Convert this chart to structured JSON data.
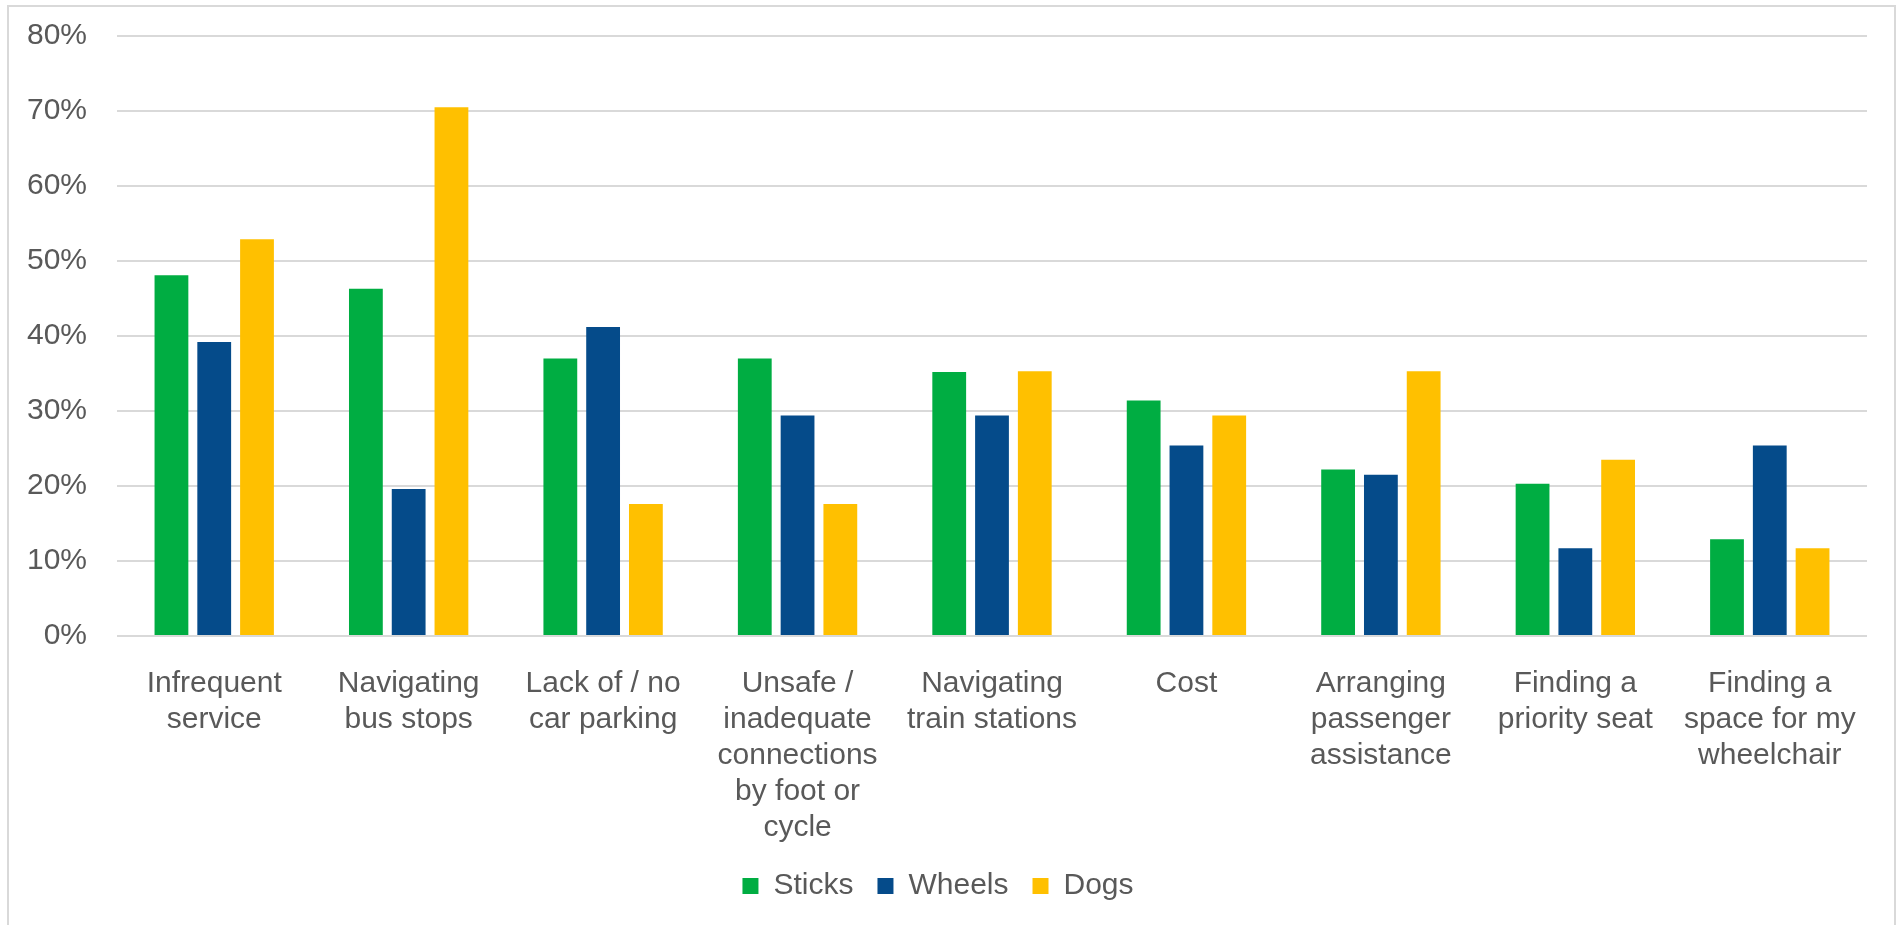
{
  "chart_data": {
    "type": "bar",
    "categories": [
      "Infrequent service",
      "Navigating bus stops",
      "Lack of / no car parking",
      "Unsafe / inadequate connections by foot or cycle",
      "Navigating train stations",
      "Cost",
      "Arranging passenger assistance",
      "Finding a priority seat",
      "Finding a space for my wheelchair"
    ],
    "series": [
      {
        "name": "Sticks",
        "color": "#00ad42",
        "values": [
          48.1,
          46.3,
          37.0,
          37.0,
          35.2,
          31.4,
          22.2,
          20.3,
          12.9
        ]
      },
      {
        "name": "Wheels",
        "color": "#054b8a",
        "values": [
          39.2,
          19.6,
          41.2,
          29.4,
          29.4,
          25.4,
          21.5,
          11.7,
          25.4
        ]
      },
      {
        "name": "Dogs",
        "color": "#ffc000",
        "values": [
          52.9,
          70.5,
          17.6,
          17.6,
          35.3,
          29.4,
          35.3,
          23.5,
          11.7
        ]
      }
    ],
    "ylim": [
      0,
      80
    ],
    "yticks": [
      {
        "value": 0,
        "label": "0%"
      },
      {
        "value": 10,
        "label": "10%"
      },
      {
        "value": 20,
        "label": "20%"
      },
      {
        "value": 30,
        "label": "30%"
      },
      {
        "value": 40,
        "label": "40%"
      },
      {
        "value": 50,
        "label": "50%"
      },
      {
        "value": 60,
        "label": "60%"
      },
      {
        "value": 70,
        "label": "70%"
      },
      {
        "value": 80,
        "label": "80%"
      }
    ],
    "grid": "y",
    "legend": "bottom"
  }
}
